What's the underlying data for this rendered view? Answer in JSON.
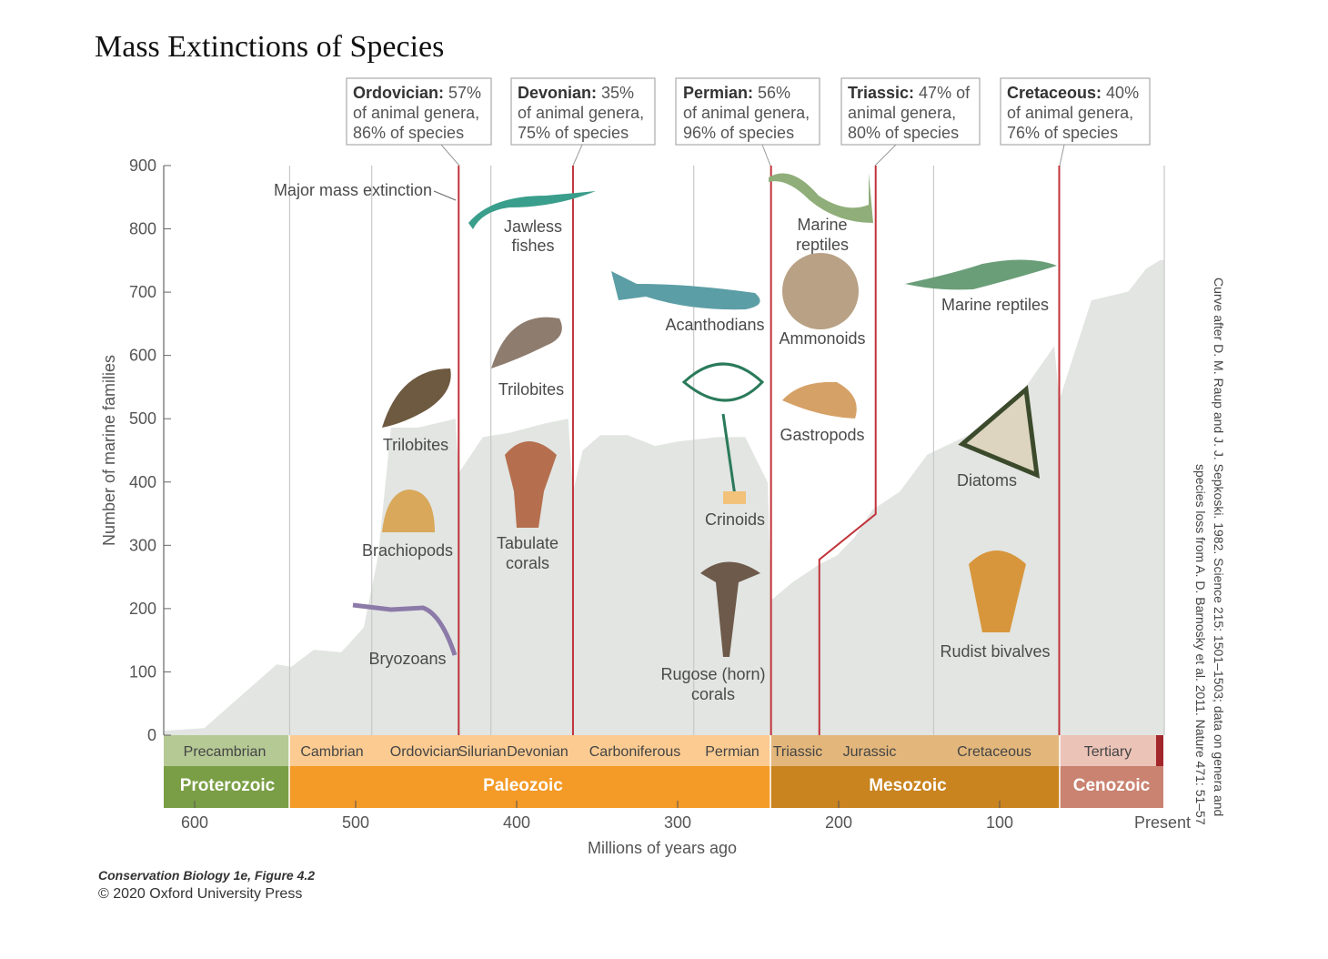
{
  "title": "Mass Extinctions of Species",
  "callouts": [
    {
      "name": "Ordovician:",
      "line1": " 57%",
      "line2": "of animal genera,",
      "line3": "86% of species"
    },
    {
      "name": "Devonian:",
      "line1": " 35%",
      "line2": "of animal genera,",
      "line3": "75% of species"
    },
    {
      "name": "Permian:",
      "line1": " 56%",
      "line2": "of animal genera,",
      "line3": "96% of species"
    },
    {
      "name": "Triassic:",
      "line1": " 47% of",
      "line2": "animal genera,",
      "line3": "80% of species"
    },
    {
      "name": "Cretaceous:",
      "line1": " 40%",
      "line2": "of animal genera,",
      "line3": "76% of species"
    }
  ],
  "annotations": {
    "major_mass_extinction": "Major mass extinction",
    "jawless_1": "Jawless",
    "jawless_2": "fishes",
    "trilobites_silurian": "Trilobites",
    "tabulate_1": "Tabulate",
    "tabulate_2": "corals",
    "acanthodians": "Acanthodians",
    "crinoids": "Crinoids",
    "rugose_1": "Rugose (horn)",
    "rugose_2": "corals",
    "marine_reptiles_tri_1": "Marine",
    "marine_reptiles_tri_2": "reptiles",
    "ammonoids": "Ammonoids",
    "gastropods": "Gastropods",
    "marine_reptiles": "Marine reptiles",
    "diatoms": "Diatoms",
    "rudist_bivalves": "Rudist bivalves",
    "trilobites_cambrian": "Trilobites",
    "brachiopods": "Brachiopods",
    "bryozoans": "Bryozoans"
  },
  "timescale": {
    "periods": [
      "Precambrian",
      "Cambrian",
      "Ordovician",
      "Silurian",
      "Devonian",
      "Carboniferous",
      "Permian",
      "Triassic",
      "Jurassic",
      "Cretaceous",
      "Tertiary"
    ],
    "eras": [
      "Proterozoic",
      "Paleozoic",
      "Mesozoic",
      "Cenozoic"
    ],
    "colors": {
      "proterozoic": "#7a9e45",
      "proterozoic_light": "#b5c995",
      "paleozoic": "#f39a27",
      "paleozoic_light": "#fbcb92",
      "mesozoic": "#c9841f",
      "mesozoic_light": "#e3b77c",
      "cenozoic": "#c98370",
      "cenozoic_light": "#ebc3b7",
      "quaternary": "#a3262a"
    }
  },
  "colors": {
    "curve_fill": "#e2e5e2",
    "extinction_line": "#c0333a",
    "grid": "#c8c8c8"
  },
  "source_note": [
    "Curve after D. M. Raup and J. J. Sepkoski. 1982. Science 215: 1501–1503; data on genera and",
    "species loss from A. D. Barnosky et al. 2011. Nature 471: 51–57"
  ],
  "footer": {
    "line1": "Conservation Biology 1e, Figure 4.2",
    "line2": "© 2020 Oxford University Press"
  },
  "chart_data": {
    "type": "area",
    "title": "Mass Extinctions of Species",
    "xlabel": "Millions of years ago",
    "ylabel": "Number of marine families",
    "xlim": [
      620,
      0
    ],
    "ylim": [
      0,
      900
    ],
    "x_ticks": [
      "600",
      "500",
      "400",
      "300",
      "200",
      "100",
      "Present"
    ],
    "x_tick_values": [
      600,
      500,
      400,
      300,
      200,
      100,
      0
    ],
    "y_ticks": [
      "0",
      "100",
      "200",
      "300",
      "400",
      "500",
      "600",
      "700",
      "800",
      "900"
    ],
    "grid": false,
    "points": [
      [
        619,
        7
      ],
      [
        594,
        11
      ],
      [
        549,
        112
      ],
      [
        540,
        108
      ],
      [
        526,
        135
      ],
      [
        509,
        131
      ],
      [
        495,
        170
      ],
      [
        486,
        284
      ],
      [
        478,
        486
      ],
      [
        461,
        486
      ],
      [
        438,
        500
      ],
      [
        436,
        414
      ],
      [
        421,
        471
      ],
      [
        404,
        478
      ],
      [
        382,
        493
      ],
      [
        368,
        500
      ],
      [
        365,
        385
      ],
      [
        359,
        450
      ],
      [
        348,
        474
      ],
      [
        331,
        474
      ],
      [
        314,
        457
      ],
      [
        300,
        464
      ],
      [
        275,
        471
      ],
      [
        258,
        471
      ],
      [
        244,
        399
      ],
      [
        242,
        213
      ],
      [
        229,
        241
      ],
      [
        212,
        270
      ],
      [
        201,
        284
      ],
      [
        190,
        313
      ],
      [
        179,
        356
      ],
      [
        162,
        385
      ],
      [
        145,
        443
      ],
      [
        122,
        471
      ],
      [
        99,
        500
      ],
      [
        82,
        557
      ],
      [
        66,
        615
      ],
      [
        63,
        529
      ],
      [
        43,
        687
      ],
      [
        20,
        701
      ],
      [
        9,
        737
      ],
      [
        0,
        751
      ]
    ],
    "period_boundaries_ma": [
      541,
      490,
      416,
      290,
      141
    ],
    "extinction_lines_ma": [
      436,
      365,
      242,
      [
        212,
        177
      ],
      63
    ]
  }
}
